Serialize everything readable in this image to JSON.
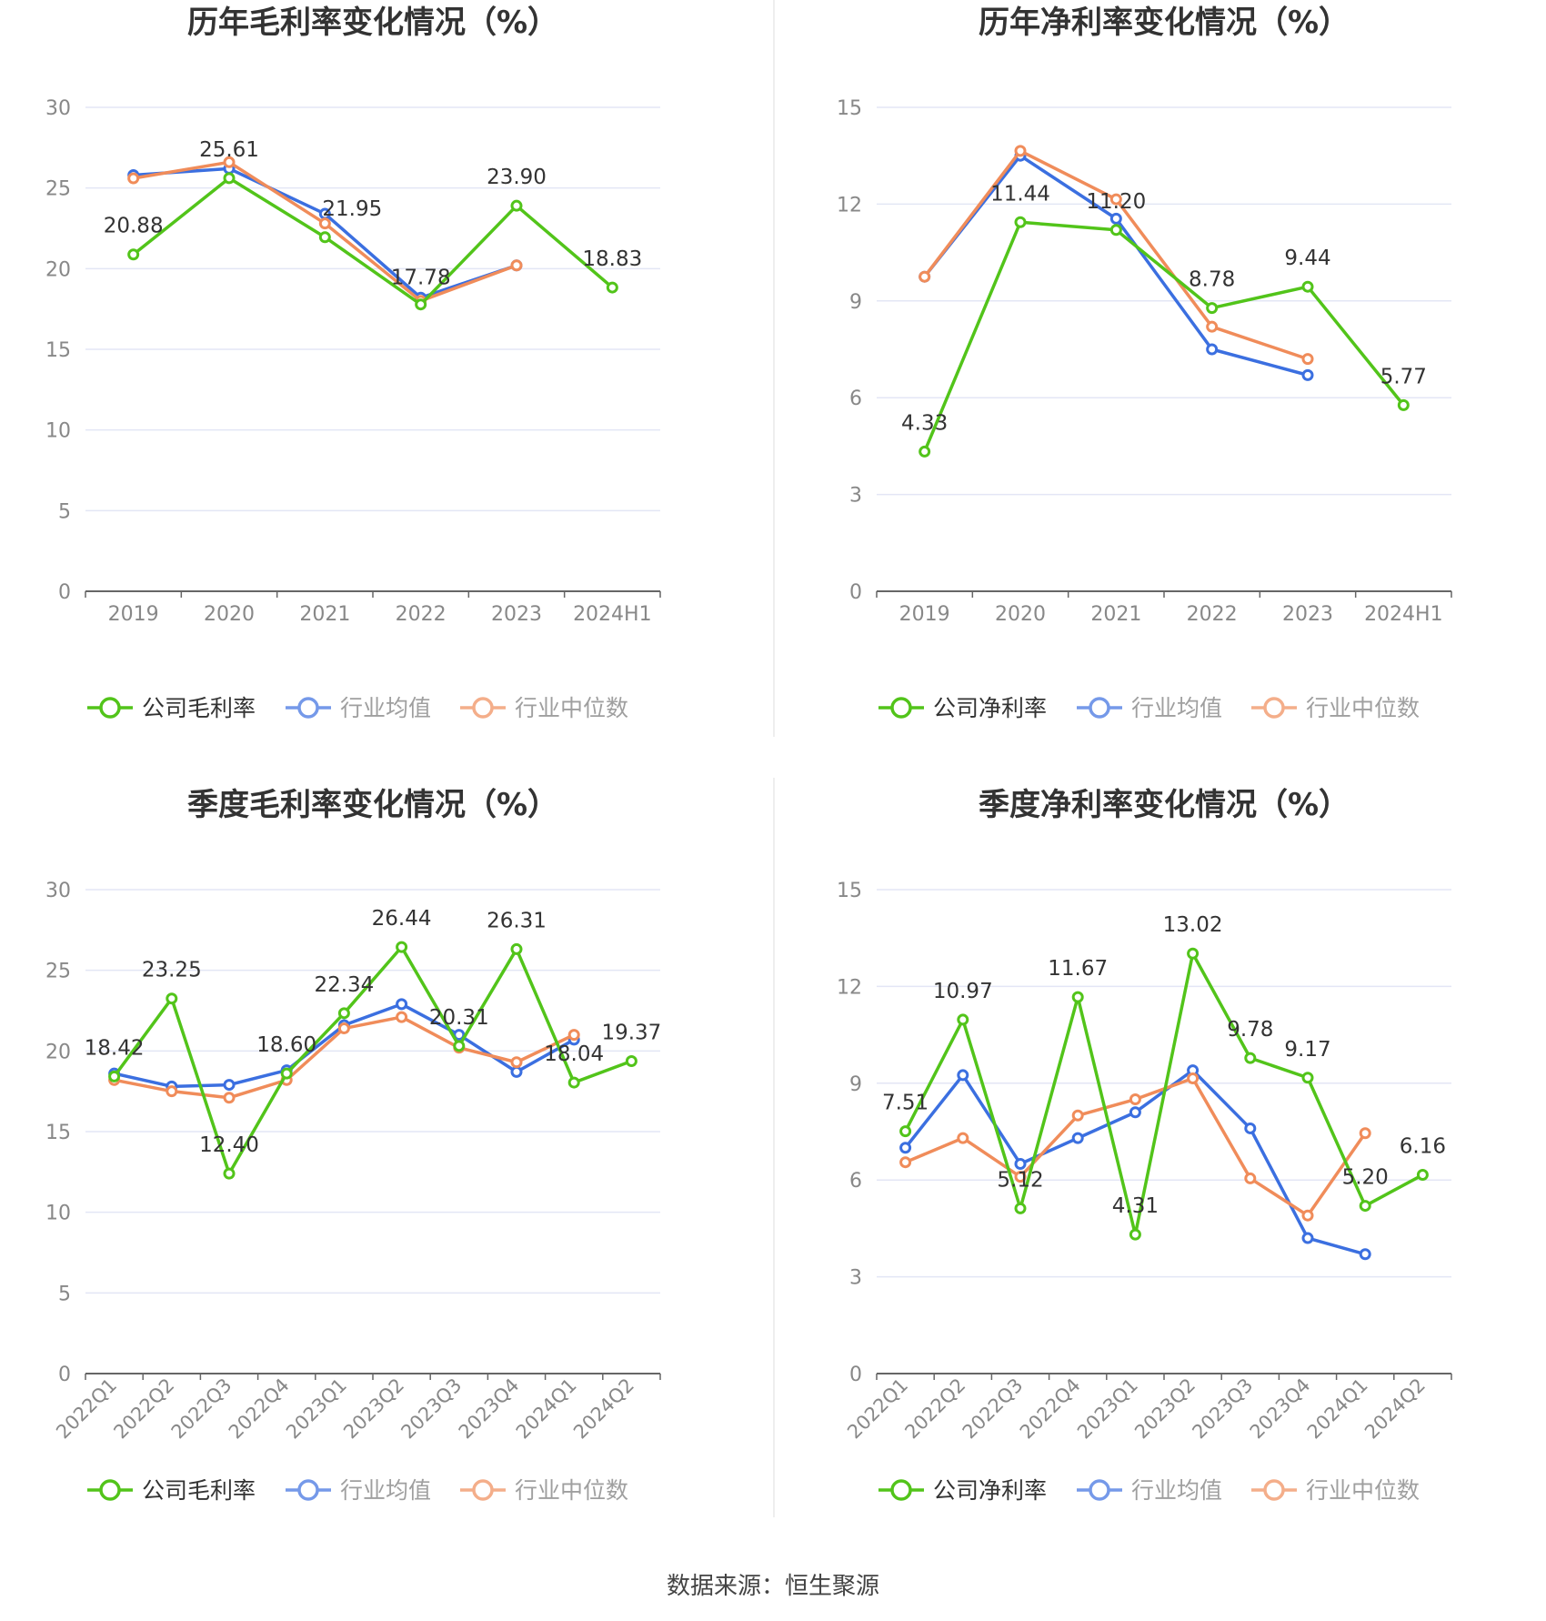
{
  "colors": {
    "company": "#52c41a",
    "avg": "#3b6fe0",
    "median": "#f08c5a",
    "grid": "#e3e6f5",
    "axis": "#666666",
    "tick": "#888888",
    "title": "#333333",
    "label": "#333333",
    "divider": "#e8e8e8"
  },
  "source": "数据来源：恒生聚源",
  "chart_data": [
    {
      "type": "line",
      "title": "历年毛利率变化情况（%）",
      "categories": [
        "2019",
        "2020",
        "2021",
        "2022",
        "2023",
        "2024H1"
      ],
      "ylim": [
        0,
        30
      ],
      "yticks": [
        "0",
        "5",
        "10",
        "15",
        "20",
        "25",
        "30"
      ],
      "grid": true,
      "legend_position": "bottom",
      "series": [
        {
          "name": "公司毛利率",
          "role": "company",
          "values": [
            20.88,
            25.61,
            21.95,
            17.78,
            23.9,
            18.83
          ],
          "labels": [
            "20.88",
            "25.61",
            "21.95",
            "17.78",
            "23.90",
            "18.83"
          ]
        },
        {
          "name": "行业均值",
          "role": "avg",
          "values": [
            25.8,
            26.2,
            23.4,
            18.2,
            20.2,
            null
          ]
        },
        {
          "name": "行业中位数",
          "role": "median",
          "values": [
            25.6,
            26.6,
            22.8,
            18.0,
            20.2,
            null
          ]
        }
      ]
    },
    {
      "type": "line",
      "title": "历年净利率变化情况（%）",
      "categories": [
        "2019",
        "2020",
        "2021",
        "2022",
        "2023",
        "2024H1"
      ],
      "ylim": [
        0,
        15
      ],
      "yticks": [
        "0",
        "3",
        "6",
        "9",
        "12",
        "15"
      ],
      "grid": true,
      "legend_position": "bottom",
      "series": [
        {
          "name": "公司净利率",
          "role": "company",
          "values": [
            4.33,
            11.44,
            11.2,
            8.78,
            9.44,
            5.77
          ],
          "labels": [
            "4.33",
            "11.44",
            "11.20",
            "8.78",
            "9.44",
            "5.77"
          ]
        },
        {
          "name": "行业均值",
          "role": "avg",
          "values": [
            9.75,
            13.5,
            11.55,
            7.5,
            6.7,
            null
          ]
        },
        {
          "name": "行业中位数",
          "role": "median",
          "values": [
            9.75,
            13.65,
            12.15,
            8.2,
            7.2,
            null
          ]
        }
      ]
    },
    {
      "type": "line",
      "title": "季度毛利率变化情况（%）",
      "categories": [
        "2022Q1",
        "2022Q2",
        "2022Q3",
        "2022Q4",
        "2023Q1",
        "2023Q2",
        "2023Q3",
        "2023Q4",
        "2024Q1",
        "2024Q2"
      ],
      "ylim": [
        0,
        30
      ],
      "yticks": [
        "0",
        "5",
        "10",
        "15",
        "20",
        "25",
        "30"
      ],
      "grid": true,
      "legend_position": "bottom",
      "series": [
        {
          "name": "公司毛利率",
          "role": "company",
          "values": [
            18.42,
            23.25,
            12.4,
            18.6,
            22.34,
            26.44,
            20.31,
            26.31,
            18.04,
            19.37
          ],
          "labels": [
            "18.42",
            "23.25",
            "12.40",
            "18.60",
            "22.34",
            "26.44",
            "20.31",
            "26.31",
            "18.04",
            "19.37"
          ]
        },
        {
          "name": "行业均值",
          "role": "avg",
          "values": [
            18.6,
            17.8,
            17.9,
            18.8,
            21.6,
            22.9,
            21.0,
            18.7,
            20.7,
            null
          ]
        },
        {
          "name": "行业中位数",
          "role": "median",
          "values": [
            18.2,
            17.5,
            17.1,
            18.2,
            21.4,
            22.1,
            20.2,
            19.3,
            21.0,
            null
          ]
        }
      ]
    },
    {
      "type": "line",
      "title": "季度净利率变化情况（%）",
      "categories": [
        "2022Q1",
        "2022Q2",
        "2022Q3",
        "2022Q4",
        "2023Q1",
        "2023Q2",
        "2023Q3",
        "2023Q4",
        "2024Q1",
        "2024Q2"
      ],
      "ylim": [
        0,
        15
      ],
      "yticks": [
        "0",
        "3",
        "6",
        "9",
        "12",
        "15"
      ],
      "grid": true,
      "legend_position": "bottom",
      "series": [
        {
          "name": "公司净利率",
          "role": "company",
          "values": [
            7.51,
            10.97,
            5.12,
            11.67,
            4.31,
            13.02,
            9.78,
            9.17,
            5.2,
            6.16
          ],
          "labels": [
            "7.51",
            "10.97",
            "5.12",
            "11.67",
            "4.31",
            "13.02",
            "9.78",
            "9.17",
            "5.20",
            "6.16"
          ]
        },
        {
          "name": "行业均值",
          "role": "avg",
          "values": [
            7.0,
            9.25,
            6.5,
            7.3,
            8.1,
            9.4,
            7.6,
            4.2,
            3.7,
            null
          ]
        },
        {
          "name": "行业中位数",
          "role": "median",
          "values": [
            6.55,
            7.3,
            6.1,
            8.0,
            8.5,
            9.15,
            6.05,
            4.9,
            7.45,
            null
          ]
        }
      ]
    }
  ]
}
